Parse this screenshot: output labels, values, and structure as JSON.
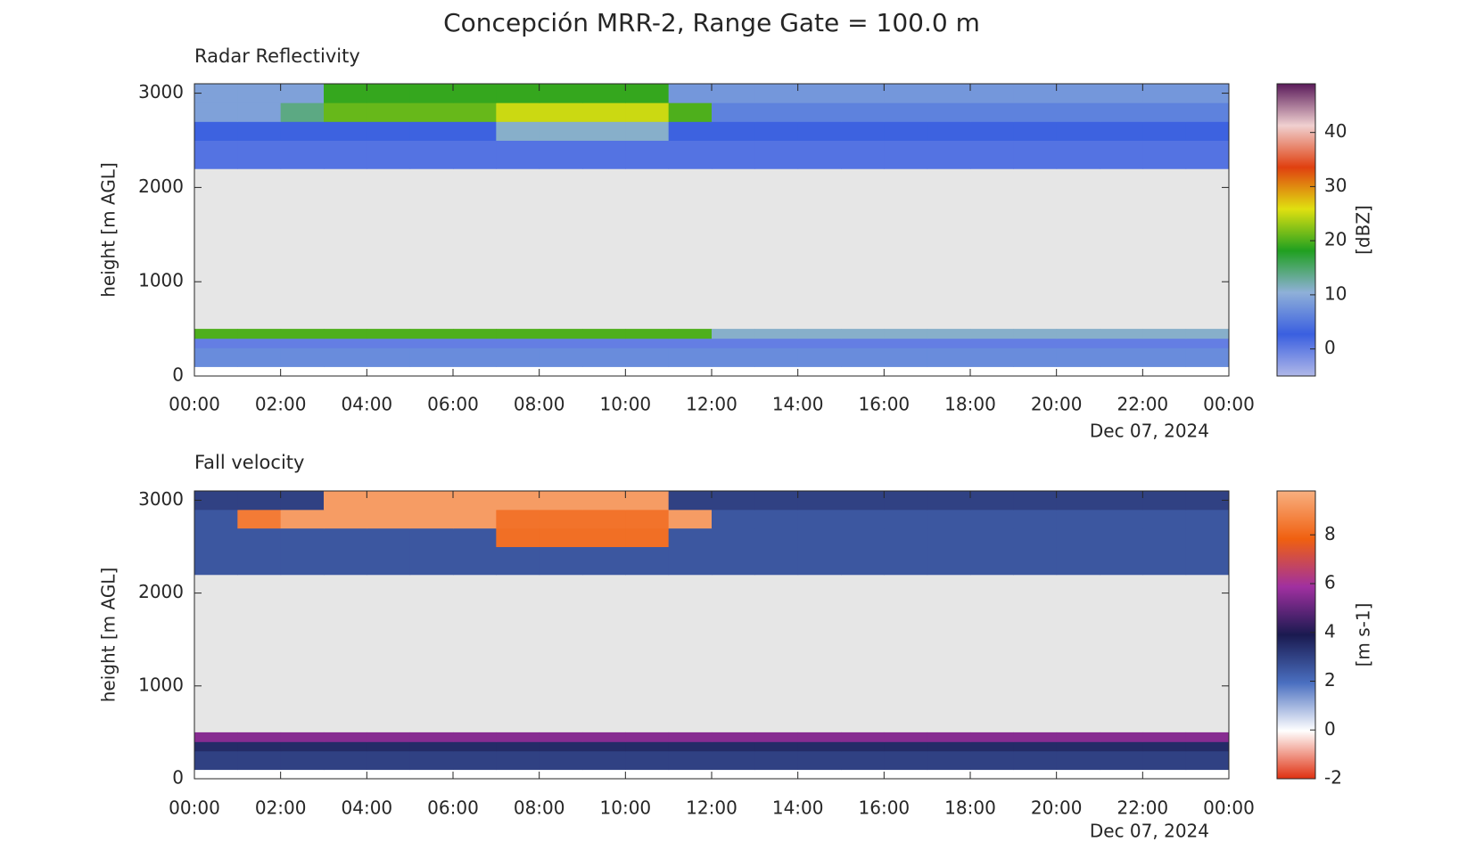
{
  "title": "Concepción MRR-2, Range Gate = 100.0 m",
  "chart_data": [
    {
      "type": "heatmap",
      "title": "Radar Reflectivity",
      "ylabel": "height [m AGL]",
      "colorbar_label": "[dBZ]",
      "date_label": "Dec 07, 2024",
      "x_edges": [
        0,
        1,
        2,
        3,
        4,
        5,
        6,
        7,
        8,
        9,
        10,
        11,
        12,
        13,
        14,
        15,
        16,
        17,
        18,
        19,
        20,
        21,
        22,
        23,
        24
      ],
      "y_edges": [
        100,
        300,
        400,
        500,
        2200,
        2500,
        2700,
        2900,
        3100
      ],
      "z": [
        [
          7,
          7,
          7,
          7,
          7,
          7,
          7,
          7,
          7,
          7,
          7,
          7,
          7,
          7,
          7,
          7,
          7,
          7,
          7,
          7,
          7,
          7,
          7,
          7
        ],
        [
          0,
          0,
          0,
          0,
          0,
          0,
          0,
          0,
          0,
          0,
          0,
          0,
          0,
          0,
          0,
          0,
          0,
          0,
          0,
          0,
          0,
          0,
          0,
          0
        ],
        [
          20,
          20,
          20,
          20,
          20,
          20,
          20,
          20,
          20,
          20,
          20,
          20,
          11,
          11,
          11,
          11,
          11,
          11,
          11,
          11,
          11,
          11,
          11,
          11
        ],
        [
          null,
          null,
          null,
          null,
          null,
          null,
          null,
          null,
          null,
          null,
          null,
          null,
          null,
          null,
          null,
          null,
          null,
          null,
          null,
          null,
          null,
          null,
          null,
          null
        ],
        [
          1,
          1,
          1,
          1,
          1,
          1,
          1,
          1,
          1,
          1,
          1,
          1,
          1,
          1,
          1,
          1,
          1,
          1,
          1,
          1,
          1,
          1,
          1,
          1
        ],
        [
          3,
          3,
          3,
          3,
          3,
          3,
          3,
          11,
          11,
          11,
          11,
          3,
          3,
          3,
          3,
          3,
          3,
          3,
          3,
          3,
          3,
          3,
          3,
          3
        ],
        [
          9,
          9,
          14,
          21,
          21,
          21,
          21,
          25,
          25,
          25,
          25,
          20,
          6,
          6,
          6,
          6,
          6,
          6,
          6,
          6,
          6,
          6,
          6,
          6
        ],
        [
          9,
          9,
          9,
          19,
          19,
          19,
          19,
          19,
          19,
          19,
          19,
          8,
          8,
          8,
          8,
          8,
          8,
          8,
          8,
          8,
          8,
          8,
          8,
          8
        ]
      ],
      "clim": [
        -5,
        49
      ],
      "cticks": [
        0,
        10,
        20,
        30,
        40
      ],
      "colormap": [
        "#b0b8e8",
        "#3a5fe0",
        "#8fb0d8",
        "#20a020",
        "#e0e010",
        "#e04010",
        "#f0d0d0",
        "#5a1a5a"
      ],
      "background": "#e6e6e6",
      "xlim": [
        0,
        24
      ],
      "xticks": [
        {
          "value": 0,
          "label": "00:00"
        },
        {
          "value": 2,
          "label": "02:00"
        },
        {
          "value": 4,
          "label": "04:00"
        },
        {
          "value": 6,
          "label": "06:00"
        },
        {
          "value": 8,
          "label": "08:00"
        },
        {
          "value": 10,
          "label": "10:00"
        },
        {
          "value": 12,
          "label": "12:00"
        },
        {
          "value": 14,
          "label": "14:00"
        },
        {
          "value": 16,
          "label": "16:00"
        },
        {
          "value": 18,
          "label": "18:00"
        },
        {
          "value": 20,
          "label": "20:00"
        },
        {
          "value": 22,
          "label": "22:00"
        },
        {
          "value": 24,
          "label": "00:00"
        }
      ],
      "ylim": [
        0,
        3100
      ],
      "yticks": [
        0,
        1000,
        2000,
        3000
      ]
    },
    {
      "type": "heatmap",
      "title": "Fall velocity",
      "ylabel": "height [m AGL]",
      "colorbar_label": "[m s-1]",
      "date_label": "Dec 07, 2024",
      "x_edges": [
        0,
        1,
        2,
        3,
        4,
        5,
        6,
        7,
        8,
        9,
        10,
        11,
        12,
        13,
        14,
        15,
        16,
        17,
        18,
        19,
        20,
        21,
        22,
        23,
        24
      ],
      "y_edges": [
        100,
        300,
        400,
        500,
        2200,
        2500,
        2700,
        2900,
        3100
      ],
      "z": [
        [
          3,
          3,
          3,
          3,
          3,
          3,
          3,
          3,
          3,
          3,
          3,
          3,
          3,
          3,
          3,
          3,
          3,
          3,
          3,
          3,
          3,
          3,
          3,
          3
        ],
        [
          3.5,
          3.5,
          3.5,
          3.5,
          3.5,
          3.5,
          3.5,
          3.5,
          3.5,
          3.5,
          3.5,
          3.5,
          3.5,
          3.5,
          3.5,
          3.5,
          3.5,
          3.5,
          3.5,
          3.5,
          3.5,
          3.5,
          3.5,
          3.5
        ],
        [
          5.5,
          5.5,
          5.5,
          5.5,
          5.5,
          5.5,
          5.5,
          5.5,
          5.5,
          5.5,
          5.5,
          5.5,
          5.5,
          5.5,
          5.5,
          5.5,
          5.5,
          5.5,
          5.5,
          5.5,
          5.5,
          5.5,
          5.5,
          5.5
        ],
        [
          null,
          null,
          null,
          null,
          null,
          null,
          null,
          null,
          null,
          null,
          null,
          null,
          null,
          null,
          null,
          null,
          null,
          null,
          null,
          null,
          null,
          null,
          null,
          null
        ],
        [
          2.5,
          2.5,
          2.5,
          2.5,
          2.5,
          2.5,
          2.5,
          2.5,
          2.5,
          2.5,
          2.5,
          2.5,
          2.5,
          2.5,
          2.5,
          2.5,
          2.5,
          2.5,
          2.5,
          2.5,
          2.5,
          2.5,
          2.5,
          2.5
        ],
        [
          2.5,
          2.5,
          2.5,
          2.5,
          2.5,
          2.5,
          2.5,
          8.2,
          8.2,
          8.2,
          8.2,
          2.5,
          2.5,
          2.5,
          2.5,
          2.5,
          2.5,
          2.5,
          2.5,
          2.5,
          2.5,
          2.5,
          2.5,
          2.5
        ],
        [
          2.5,
          8.5,
          9.3,
          9.3,
          9.3,
          9.3,
          9.3,
          8.3,
          8.3,
          8.3,
          8.3,
          9.3,
          2.5,
          2.5,
          2.5,
          2.5,
          2.5,
          2.5,
          2.5,
          2.5,
          2.5,
          2.5,
          2.5,
          2.5
        ],
        [
          3,
          3,
          3,
          9.3,
          9.3,
          9.3,
          9.3,
          9.3,
          9.3,
          9.3,
          9.3,
          3,
          3,
          3,
          3,
          3,
          3,
          3,
          3,
          3,
          3,
          3,
          3,
          3
        ]
      ],
      "clim": [
        -2,
        9.8
      ],
      "cticks": [
        -2,
        0,
        2,
        4,
        6,
        8
      ],
      "colormap": [
        "#e03010",
        "#ffffff",
        "#4a6fc0",
        "#1a1a50",
        "#a030a0",
        "#f06010",
        "#f8b080"
      ],
      "background": "#e6e6e6",
      "xlim": [
        0,
        24
      ],
      "xticks": [
        {
          "value": 0,
          "label": "00:00"
        },
        {
          "value": 2,
          "label": "02:00"
        },
        {
          "value": 4,
          "label": "04:00"
        },
        {
          "value": 6,
          "label": "06:00"
        },
        {
          "value": 8,
          "label": "08:00"
        },
        {
          "value": 10,
          "label": "10:00"
        },
        {
          "value": 12,
          "label": "12:00"
        },
        {
          "value": 14,
          "label": "14:00"
        },
        {
          "value": 16,
          "label": "16:00"
        },
        {
          "value": 18,
          "label": "18:00"
        },
        {
          "value": 20,
          "label": "20:00"
        },
        {
          "value": 22,
          "label": "22:00"
        },
        {
          "value": 24,
          "label": "00:00"
        }
      ],
      "ylim": [
        0,
        3100
      ],
      "yticks": [
        0,
        1000,
        2000,
        3000
      ]
    }
  ]
}
